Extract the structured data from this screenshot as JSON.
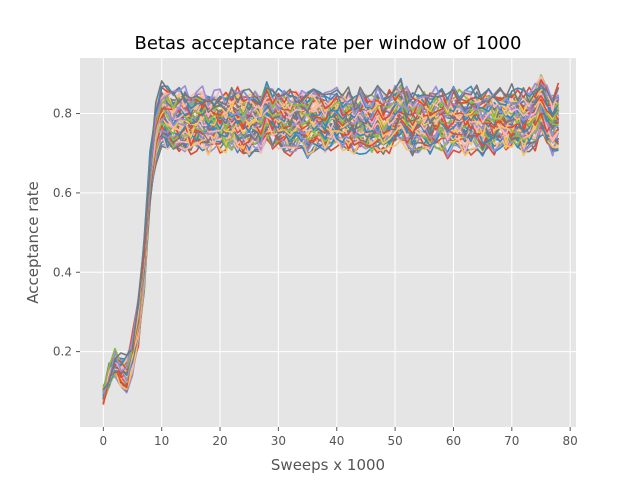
{
  "chart_data": {
    "type": "line",
    "title": "Betas acceptance rate per window of 1000",
    "xlabel": "Sweeps x 1000",
    "ylabel": "Acceptance rate",
    "xlim": [
      -4,
      81
    ],
    "ylim": [
      0.01,
      0.94
    ],
    "xticks": [
      0,
      10,
      20,
      30,
      40,
      50,
      60,
      70,
      80
    ],
    "xtick_labels": [
      "0",
      "10",
      "20",
      "30",
      "40",
      "50",
      "60",
      "70",
      "80"
    ],
    "yticks": [
      0.2,
      0.4,
      0.6,
      0.8
    ],
    "ytick_labels": [
      "0.2",
      "0.4",
      "0.6",
      "0.8"
    ],
    "grid": true,
    "style": "ggplot",
    "background": "#E5E5E5",
    "grid_color": "#FFFFFF",
    "colors": [
      "#E24A33",
      "#348ABD",
      "#988ED5",
      "#777777",
      "#FBC15E",
      "#8EBA42",
      "#FFB5B8"
    ],
    "x": [
      0,
      1,
      2,
      3,
      4,
      5,
      6,
      7,
      8,
      9,
      10,
      11,
      12,
      13,
      14,
      15,
      16,
      17,
      18,
      19,
      20,
      21,
      22,
      23,
      24,
      25,
      26,
      27,
      28,
      29,
      30,
      31,
      32,
      33,
      34,
      35,
      36,
      37,
      38,
      39,
      40,
      41,
      42,
      43,
      44,
      45,
      46,
      47,
      48,
      49,
      50,
      51,
      52,
      53,
      54,
      55,
      56,
      57,
      58,
      59,
      60,
      61,
      62,
      63,
      64,
      65,
      66,
      67,
      68,
      69,
      70,
      71,
      72,
      73,
      74,
      75,
      76,
      77,
      78
    ],
    "series_profile": [
      0.09,
      0.14,
      0.17,
      0.15,
      0.14,
      0.19,
      0.27,
      0.42,
      0.63,
      0.74,
      0.79,
      0.78,
      0.77,
      0.78,
      0.78,
      0.77,
      0.78,
      0.78,
      0.77,
      0.78,
      0.78,
      0.77,
      0.78,
      0.78,
      0.77,
      0.77,
      0.78,
      0.77,
      0.8,
      0.78,
      0.78,
      0.78,
      0.77,
      0.78,
      0.78,
      0.77,
      0.78,
      0.78,
      0.77,
      0.78,
      0.78,
      0.77,
      0.78,
      0.77,
      0.78,
      0.77,
      0.77,
      0.78,
      0.77,
      0.78,
      0.79,
      0.8,
      0.78,
      0.77,
      0.78,
      0.78,
      0.77,
      0.78,
      0.78,
      0.77,
      0.78,
      0.78,
      0.77,
      0.78,
      0.78,
      0.77,
      0.78,
      0.77,
      0.78,
      0.77,
      0.78,
      0.78,
      0.77,
      0.78,
      0.79,
      0.82,
      0.79,
      0.77,
      0.79
    ],
    "series_count": 60,
    "spread_low": 0.72,
    "spread_high": 0.85,
    "early_spread": 0.05
  }
}
